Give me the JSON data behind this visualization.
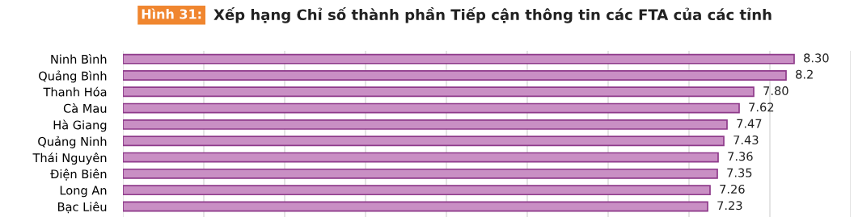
{
  "chart_data": {
    "type": "bar",
    "orientation": "horizontal",
    "title": "Xếp hạng Chỉ số thành phần Tiếp cận thông tin các FTA của các tỉnh",
    "annotations": [
      "Hình 31:"
    ],
    "categories": [
      "Ninh Bình",
      "Quảng Bình",
      "Thanh Hóa",
      "Cà Mau",
      "Hà Giang",
      "Quảng Ninh",
      "Thái Nguyên",
      "Điện Biên",
      "Long An",
      "Bạc Liêu"
    ],
    "values": [
      8.3,
      8.2,
      7.8,
      7.62,
      7.47,
      7.43,
      7.36,
      7.35,
      7.26,
      7.23
    ],
    "value_labels": [
      "8.30",
      "8.2",
      "7.80",
      "7.62",
      "7.47",
      "7.43",
      "7.36",
      "7.35",
      "7.26",
      "7.23"
    ],
    "color": "#c98fc4",
    "xlim": [
      0,
      9
    ],
    "xticks": [
      {
        "value": 0,
        "label": null
      },
      {
        "value": 1,
        "label": null
      },
      {
        "value": 2,
        "label": null
      },
      {
        "value": 3,
        "label": null
      },
      {
        "value": 4,
        "label": null
      },
      {
        "value": 5,
        "label": null
      },
      {
        "value": 6,
        "label": null
      },
      {
        "value": 7,
        "label": null
      },
      {
        "value": 8,
        "label": null
      },
      {
        "value": 9,
        "label": null
      }
    ],
    "tick_labels": "y",
    "grid": "x",
    "legend": false
  }
}
